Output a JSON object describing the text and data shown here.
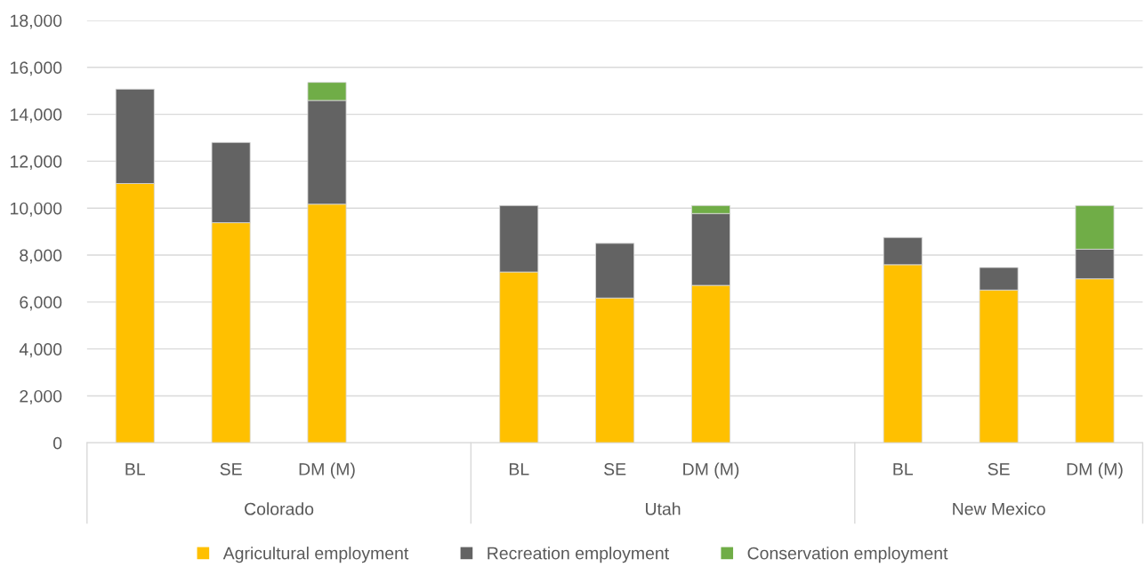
{
  "chart_data": {
    "type": "bar",
    "stacked": true,
    "categories": [
      "BL",
      "SE",
      "DM (M)",
      null,
      "BL",
      "SE",
      "DM (M)",
      null,
      "BL",
      "SE",
      "DM (M)"
    ],
    "series": [
      {
        "name": "Agricultural employment",
        "color": "#ffc000",
        "values": [
          11050,
          9380,
          10170,
          null,
          7280,
          6170,
          6710,
          null,
          7590,
          6510,
          6990
        ]
      },
      {
        "name": "Recreation employment",
        "color": "#636363",
        "values": [
          4020,
          3420,
          4420,
          null,
          2830,
          2330,
          3060,
          null,
          1160,
          960,
          1260
        ]
      },
      {
        "name": "Conservation employment",
        "color": "#70ad47",
        "values": [
          null,
          null,
          770,
          null,
          null,
          null,
          340,
          null,
          null,
          null,
          1860
        ]
      }
    ],
    "annotations": [
      "Colorado",
      "Utah",
      "New Mexico"
    ],
    "ylim": [
      0,
      18000
    ],
    "yticks": [
      0,
      {
        "value": 2000,
        "label": "2,000"
      },
      {
        "value": 4000,
        "label": "4,000"
      },
      {
        "value": 6000,
        "label": "6,000"
      },
      {
        "value": 8000,
        "label": "8,000"
      },
      {
        "value": 10000,
        "label": "10,000"
      },
      {
        "value": 12000,
        "label": "12,000"
      },
      {
        "value": 14000,
        "label": "14,000"
      },
      {
        "value": 16000,
        "label": "16,000"
      },
      {
        "value": 18000,
        "label": "18,000"
      }
    ],
    "grid": "y",
    "legend": "bottom"
  }
}
